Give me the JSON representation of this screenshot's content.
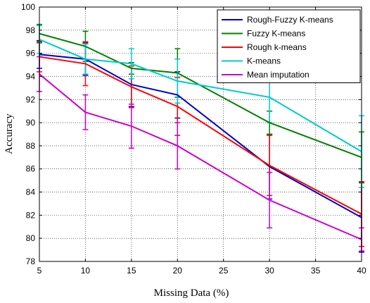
{
  "chart_data": {
    "type": "line",
    "xlabel": "Missing Data (%)",
    "ylabel": "Accuracy",
    "xlim": [
      5,
      40
    ],
    "ylim": [
      78,
      100
    ],
    "x_ticks": [
      5,
      10,
      15,
      20,
      25,
      30,
      35,
      40
    ],
    "y_ticks": [
      78,
      80,
      82,
      84,
      86,
      88,
      90,
      92,
      94,
      96,
      98,
      100
    ],
    "grid": true,
    "legend_position": "top-right",
    "x": [
      5,
      10,
      15,
      20,
      30,
      40
    ],
    "series": [
      {
        "name": "Rough-Fuzzy K-means",
        "color": "#0000cc",
        "values": [
          95.9,
          95.5,
          93.3,
          92.4,
          86.2,
          81.8
        ],
        "error": [
          1.2,
          1.4,
          1.9,
          2.0,
          2.8,
          3.0
        ]
      },
      {
        "name": "Fuzzy K-means",
        "color": "#008000",
        "values": [
          97.7,
          96.6,
          94.7,
          94.3,
          90.0,
          87.0
        ],
        "error": [
          0.8,
          1.3,
          0.5,
          2.1,
          1.0,
          2.2
        ]
      },
      {
        "name": "Rough k-means",
        "color": "#ff0000",
        "values": [
          95.7,
          95.1,
          93.1,
          91.4,
          86.3,
          82.1
        ],
        "error": [
          1.3,
          1.9,
          1.8,
          2.5,
          2.6,
          2.8
        ]
      },
      {
        "name": "K-means",
        "color": "#00cccc",
        "values": [
          97.2,
          95.5,
          95.1,
          93.6,
          92.2,
          87.5
        ],
        "error": [
          1.2,
          1.3,
          1.3,
          1.9,
          2.2,
          3.1
        ]
      },
      {
        "name": "Mean imputation",
        "color": "#cc00cc",
        "values": [
          94.2,
          90.9,
          89.7,
          88.0,
          83.3,
          79.9
        ],
        "error": [
          1.5,
          1.5,
          1.9,
          2.0,
          2.4,
          1.0
        ]
      }
    ]
  }
}
